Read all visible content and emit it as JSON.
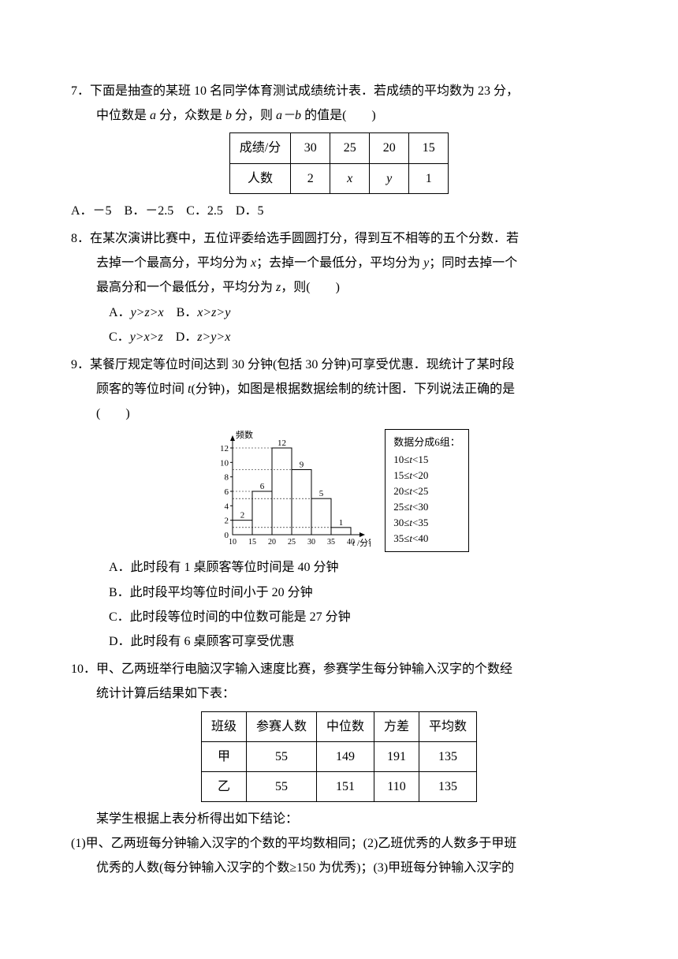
{
  "q7": {
    "num": "7．",
    "line1": "下面是抽查的某班 10 名同学体育测试成绩统计表．若成绩的平均数为 23 分，",
    "line2_prefix": "中位数是 ",
    "line2_a": "a",
    "line2_mid": " 分，众数是 ",
    "line2_b": "b",
    "line2_suffix": " 分，则 ",
    "line2_expr": "a－b",
    "line2_end": " 的值是(　　)",
    "table": {
      "row1": [
        "成绩/分",
        "30",
        "25",
        "20",
        "15"
      ],
      "row2": [
        "人数",
        "2",
        "x",
        "y",
        "1"
      ]
    },
    "options": "A．－5　B．－2.5　C．2.5　D．5"
  },
  "q8": {
    "num": "8．",
    "line1": "在某次演讲比赛中，五位评委给选手圆圆打分，得到互不相等的五个分数．若",
    "line2_a": "去掉一个最高分，平均分为 ",
    "line2_x": "x",
    "line2_b": "；去掉一个最低分，平均分为 ",
    "line2_y": "y",
    "line2_c": "；同时去掉一个",
    "line3_a": "最高分和一个最低分，平均分为 ",
    "line3_z": "z",
    "line3_b": "，则(　　)",
    "opt1": "A．",
    "opt1e": "y>z>x",
    "opt1sp": "　B．",
    "opt1e2": "x>z>y",
    "opt2": "C．",
    "opt2e": "y>x>z",
    "opt2sp": "　D．",
    "opt2e2": "z>y>x"
  },
  "q9": {
    "num": "9．",
    "line1": "某餐厅规定等位时间达到 30 分钟(包括 30 分钟)可享受优惠．现统计了某时段",
    "line2_a": "顾客的等位时间 ",
    "line2_t": "t",
    "line2_b": "(分钟)，如图是根据数据绘制的统计图．下列说法正确的是",
    "line3": "(　　)",
    "chart": {
      "ylabel": "频数",
      "xlabel": "t/分钟",
      "ymax": 12,
      "ytick_step": 2,
      "yticks": [
        "0",
        "2",
        "4",
        "6",
        "8",
        "10",
        "12"
      ],
      "xticks": [
        "10",
        "15",
        "20",
        "25",
        "30",
        "35",
        "40"
      ],
      "bars": [
        {
          "label": "2",
          "height": 2
        },
        {
          "label": "6",
          "height": 6
        },
        {
          "label": "12",
          "height": 12
        },
        {
          "label": "9",
          "height": 9
        },
        {
          "label": "5",
          "height": 5
        },
        {
          "label": "1",
          "height": 1
        }
      ],
      "bar_fill": "#ffffff",
      "bar_stroke": "#000000",
      "axis_color": "#000000",
      "font_size": 11
    },
    "legend": {
      "title": "数据分成6组：",
      "items": [
        "10≤t<15",
        "15≤t<20",
        "20≤t<25",
        "25≤t<30",
        "30≤t<35",
        "35≤t<40"
      ]
    },
    "optA": "A．此时段有 1 桌顾客等位时间是 40 分钟",
    "optB": "B．此时段平均等位时间小于 20 分钟",
    "optC": "C．此时段等位时间的中位数可能是 27 分钟",
    "optD": "D．此时段有 6 桌顾客可享受优惠"
  },
  "q10": {
    "num": "10．",
    "line1": "甲、乙两班举行电脑汉字输入速度比赛，参赛学生每分钟输入汉字的个数经",
    "line2": "统计计算后结果如下表：",
    "table": {
      "header": [
        "班级",
        "参赛人数",
        "中位数",
        "方差",
        "平均数"
      ],
      "rows": [
        [
          "甲",
          "55",
          "149",
          "191",
          "135"
        ],
        [
          "乙",
          "55",
          "151",
          "110",
          "135"
        ]
      ]
    },
    "line3": "某学生根据上表分析得出如下结论：",
    "sub1_num": "(1)",
    "sub1_text": "甲、乙两班每分钟输入汉字的个数的平均数相同；(2)乙班优秀的人数多于甲班",
    "sub2": "优秀的人数(每分钟输入汉字的个数≥150 为优秀)；(3)甲班每分钟输入汉字的"
  }
}
